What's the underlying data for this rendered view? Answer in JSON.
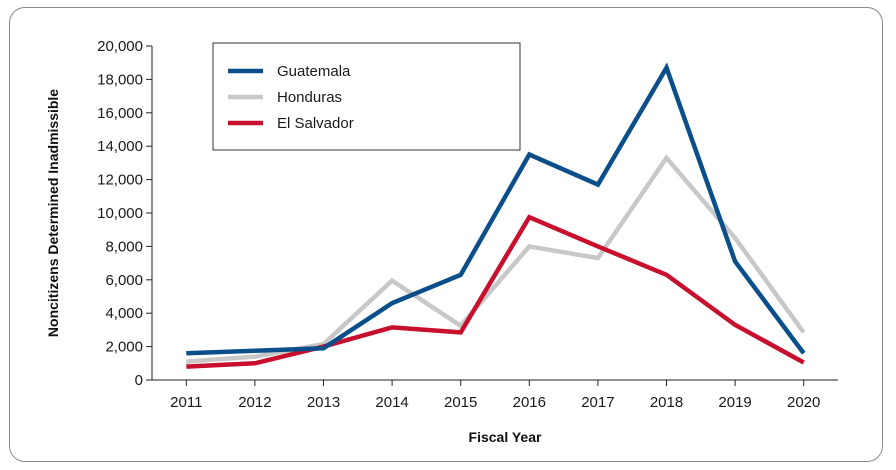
{
  "chart_data": {
    "type": "line",
    "xlabel": "Fiscal Year",
    "ylabel": "Noncitizens Determined Inadmissible",
    "categories": [
      "2011",
      "2012",
      "2013",
      "2014",
      "2015",
      "2016",
      "2017",
      "2018",
      "2019",
      "2020"
    ],
    "ylim": [
      0,
      20000
    ],
    "yticks": [
      0,
      2000,
      4000,
      6000,
      8000,
      10000,
      12000,
      14000,
      16000,
      18000,
      20000
    ],
    "ytick_labels": [
      "0",
      "2,000",
      "4,000",
      "6,000",
      "8,000",
      "10,000",
      "12,000",
      "14,000",
      "16,000",
      "18,000",
      "20,000"
    ],
    "grid": false,
    "legend_position": "top-left",
    "series": [
      {
        "name": "Guatemala",
        "color": "#0b4f8a",
        "values": [
          1600,
          1750,
          1900,
          4600,
          6300,
          13500,
          11700,
          18700,
          7100,
          1600
        ]
      },
      {
        "name": "Honduras",
        "color": "#c8c8c8",
        "values": [
          1100,
          1400,
          2150,
          5950,
          3250,
          8000,
          7300,
          13300,
          8500,
          2850
        ]
      },
      {
        "name": "El Salvador",
        "color": "#c8102e",
        "values": [
          800,
          1000,
          2000,
          3150,
          2850,
          9750,
          8000,
          6300,
          3300,
          1050
        ]
      }
    ]
  }
}
